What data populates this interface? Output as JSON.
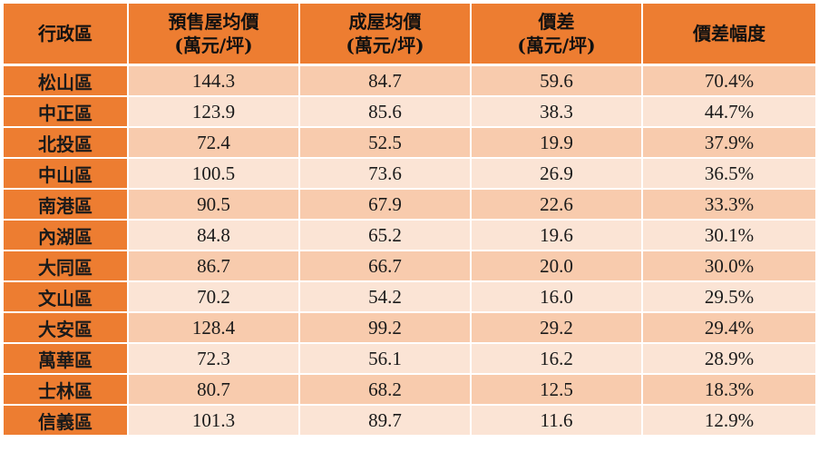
{
  "colors": {
    "header_bg": "#ed7d31",
    "district_bg": "#ed7d31",
    "row_odd_bg": "#f8cbad",
    "row_even_bg": "#fbe4d5"
  },
  "headers": [
    {
      "line1": "行政區",
      "line2": ""
    },
    {
      "line1": "預售屋均價",
      "line2": "(萬元/坪)"
    },
    {
      "line1": "成屋均價",
      "line2": "(萬元/坪)"
    },
    {
      "line1": "價差",
      "line2": "(萬元/坪)"
    },
    {
      "line1": "價差幅度",
      "line2": ""
    }
  ],
  "rows": [
    {
      "district": "松山區",
      "presale": "144.3",
      "existing": "84.7",
      "diff": "59.6",
      "pct": "70.4%"
    },
    {
      "district": "中正區",
      "presale": "123.9",
      "existing": "85.6",
      "diff": "38.3",
      "pct": "44.7%"
    },
    {
      "district": "北投區",
      "presale": "72.4",
      "existing": "52.5",
      "diff": "19.9",
      "pct": "37.9%"
    },
    {
      "district": "中山區",
      "presale": "100.5",
      "existing": "73.6",
      "diff": "26.9",
      "pct": "36.5%"
    },
    {
      "district": "南港區",
      "presale": "90.5",
      "existing": "67.9",
      "diff": "22.6",
      "pct": "33.3%"
    },
    {
      "district": "內湖區",
      "presale": "84.8",
      "existing": "65.2",
      "diff": "19.6",
      "pct": "30.1%"
    },
    {
      "district": "大同區",
      "presale": "86.7",
      "existing": "66.7",
      "diff": "20.0",
      "pct": "30.0%"
    },
    {
      "district": "文山區",
      "presale": "70.2",
      "existing": "54.2",
      "diff": "16.0",
      "pct": "29.5%"
    },
    {
      "district": "大安區",
      "presale": "128.4",
      "existing": "99.2",
      "diff": "29.2",
      "pct": "29.4%"
    },
    {
      "district": "萬華區",
      "presale": "72.3",
      "existing": "56.1",
      "diff": "16.2",
      "pct": "28.9%"
    },
    {
      "district": "士林區",
      "presale": "80.7",
      "existing": "68.2",
      "diff": "12.5",
      "pct": "18.3%"
    },
    {
      "district": "信義區",
      "presale": "101.3",
      "existing": "89.7",
      "diff": "11.6",
      "pct": "12.9%"
    }
  ]
}
